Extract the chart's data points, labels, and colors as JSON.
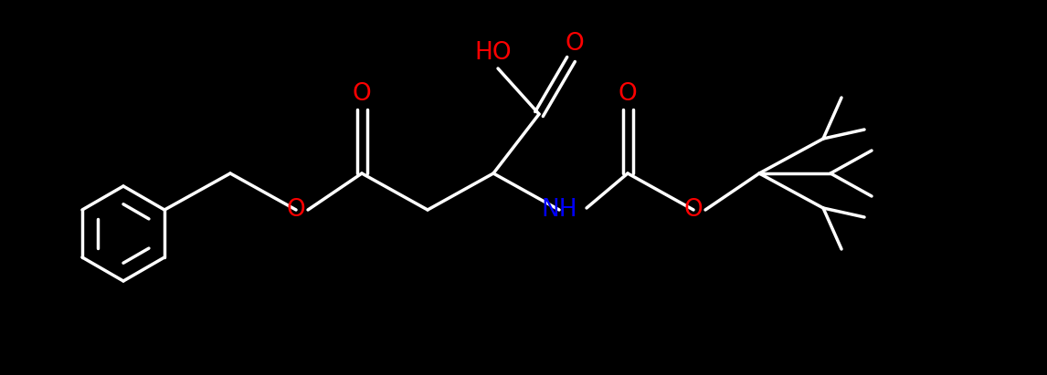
{
  "bg_color": "#000000",
  "o_color": "#ff0000",
  "n_color": "#0000ff",
  "c_color": "#ffffff",
  "lw": 2.5,
  "fs": 19,
  "fig_w": 11.46,
  "fig_h": 4.11,
  "xlim": [
    0,
    11.46
  ],
  "ylim": [
    0,
    4.11
  ]
}
